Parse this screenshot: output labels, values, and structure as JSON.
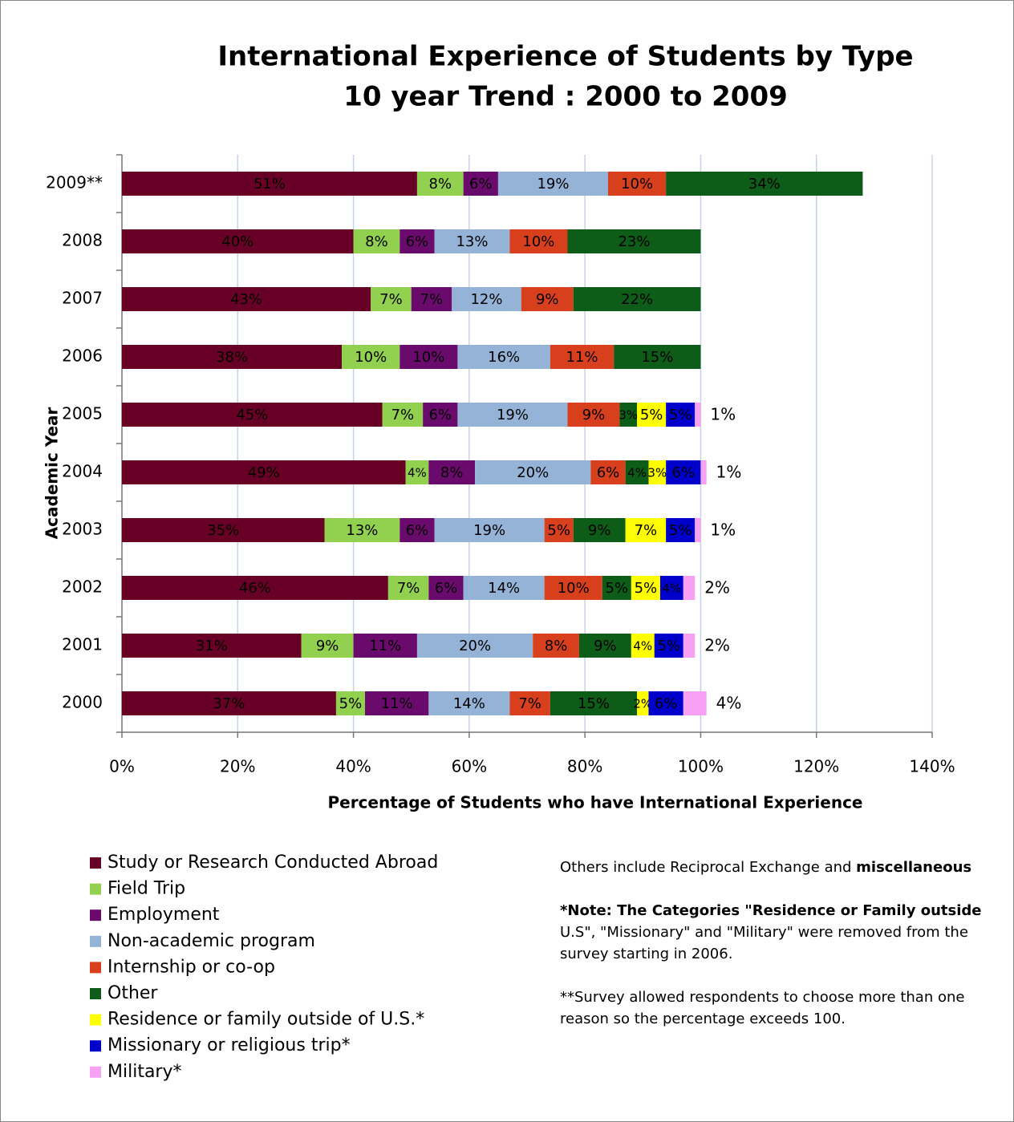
{
  "chart_data": {
    "type": "bar",
    "orientation": "horizontal",
    "stacked": true,
    "title": [
      "International Experience of Students by Type",
      "10 year Trend : 2000 to 2009"
    ],
    "x_label": "Percentage of Students who have International Experience",
    "y_label": "Academic Year",
    "categories": [
      "2000",
      "2001",
      "2002",
      "2003",
      "2004",
      "2005",
      "2006",
      "2007",
      "2008",
      "2009**"
    ],
    "series": [
      {
        "name": "Study or Research Conducted Abroad",
        "color": "#670024",
        "values": [
          37,
          31,
          46,
          35,
          49,
          45,
          38,
          43,
          40,
          51
        ],
        "value_labels": [
          "37%",
          "31%",
          "46%",
          "35%",
          "49%",
          "45%",
          "38%",
          "43%",
          "40%",
          "51%"
        ]
      },
      {
        "name": "Field Trip",
        "color": "#92d050",
        "values": [
          5,
          9,
          7,
          13,
          4,
          7,
          10,
          7,
          8,
          8
        ],
        "value_labels": [
          "5%",
          "9%",
          "7%",
          "13%",
          "4%",
          "7%",
          "10%",
          "7%",
          "8%",
          "8%"
        ]
      },
      {
        "name": "Employment",
        "color": "#6a0a6c",
        "values": [
          11,
          11,
          6,
          6,
          8,
          6,
          10,
          7,
          6,
          6
        ],
        "value_labels": [
          "11%",
          "11%",
          "6%",
          "6%",
          "8%",
          "6%",
          "10%",
          "7%",
          "6%",
          "6%"
        ]
      },
      {
        "name": "Non-academic program",
        "color": "#95b3d7",
        "values": [
          14,
          20,
          14,
          19,
          20,
          19,
          16,
          12,
          13,
          19
        ],
        "value_labels": [
          "14%",
          "20%",
          "14%",
          "19%",
          "20%",
          "19%",
          "16%",
          "12%",
          "13%",
          "19%"
        ]
      },
      {
        "name": "Internship or co-op",
        "color": "#d8401d",
        "values": [
          7,
          8,
          10,
          5,
          6,
          9,
          11,
          9,
          10,
          10
        ],
        "value_labels": [
          "7%",
          "8%",
          "10%",
          "5%",
          "6%",
          "9%",
          "11%",
          "9%",
          "10%",
          "10%"
        ]
      },
      {
        "name": "Other",
        "color": "#0d5c18",
        "values": [
          15,
          9,
          5,
          9,
          4,
          3,
          15,
          22,
          23,
          34
        ],
        "value_labels": [
          "15%",
          "9%",
          "5%",
          "9%",
          "4%",
          "3%",
          "15%",
          "22%",
          "23%",
          "34%"
        ]
      },
      {
        "name": "Residence or family outside of U.S.*",
        "color": "#ffff00",
        "values": [
          2,
          4,
          5,
          7,
          3,
          5,
          null,
          null,
          null,
          null
        ],
        "value_labels": [
          "2%",
          "4%",
          "5%",
          "7%",
          "3%",
          "5%",
          null,
          null,
          null,
          null
        ]
      },
      {
        "name": "Missionary or religious trip*",
        "color": "#0000cc",
        "values": [
          6,
          5,
          4,
          5,
          6,
          5,
          null,
          null,
          null,
          null
        ],
        "value_labels": [
          "6%",
          "5%",
          "4%",
          "5%",
          "6%",
          "5%",
          null,
          null,
          null,
          null
        ]
      },
      {
        "name": "Military*",
        "color": "#f8a0f4",
        "values": [
          4,
          2,
          2,
          1,
          1,
          1,
          null,
          null,
          null,
          null
        ],
        "value_labels": [
          "4%",
          "2%",
          "2%",
          "1%",
          "1%",
          "1%",
          null,
          null,
          null,
          null
        ]
      }
    ],
    "xlim": [
      0,
      140
    ],
    "xticks": [
      {
        "value": 0,
        "label": "0%"
      },
      {
        "value": 20,
        "label": "20%"
      },
      {
        "value": 40,
        "label": "40%"
      },
      {
        "value": 60,
        "label": "60%"
      },
      {
        "value": 80,
        "label": "80%"
      },
      {
        "value": 100,
        "label": "100%"
      },
      {
        "value": 120,
        "label": "120%"
      },
      {
        "value": 140,
        "label": "140%"
      }
    ],
    "grid": true,
    "legend": "bottom-left",
    "notes": [
      [
        "Others include Reciprocal Exchange and ",
        "miscellaneous"
      ],
      [
        "*Note: The Categories \"Residence or Family outside",
        " U.S\", \"Missionary\" and \"Military\" were removed from the survey starting in 2006."
      ],
      [
        "**Survey allowed respondents to choose more than one reason so the percentage exceeds 100."
      ]
    ]
  }
}
